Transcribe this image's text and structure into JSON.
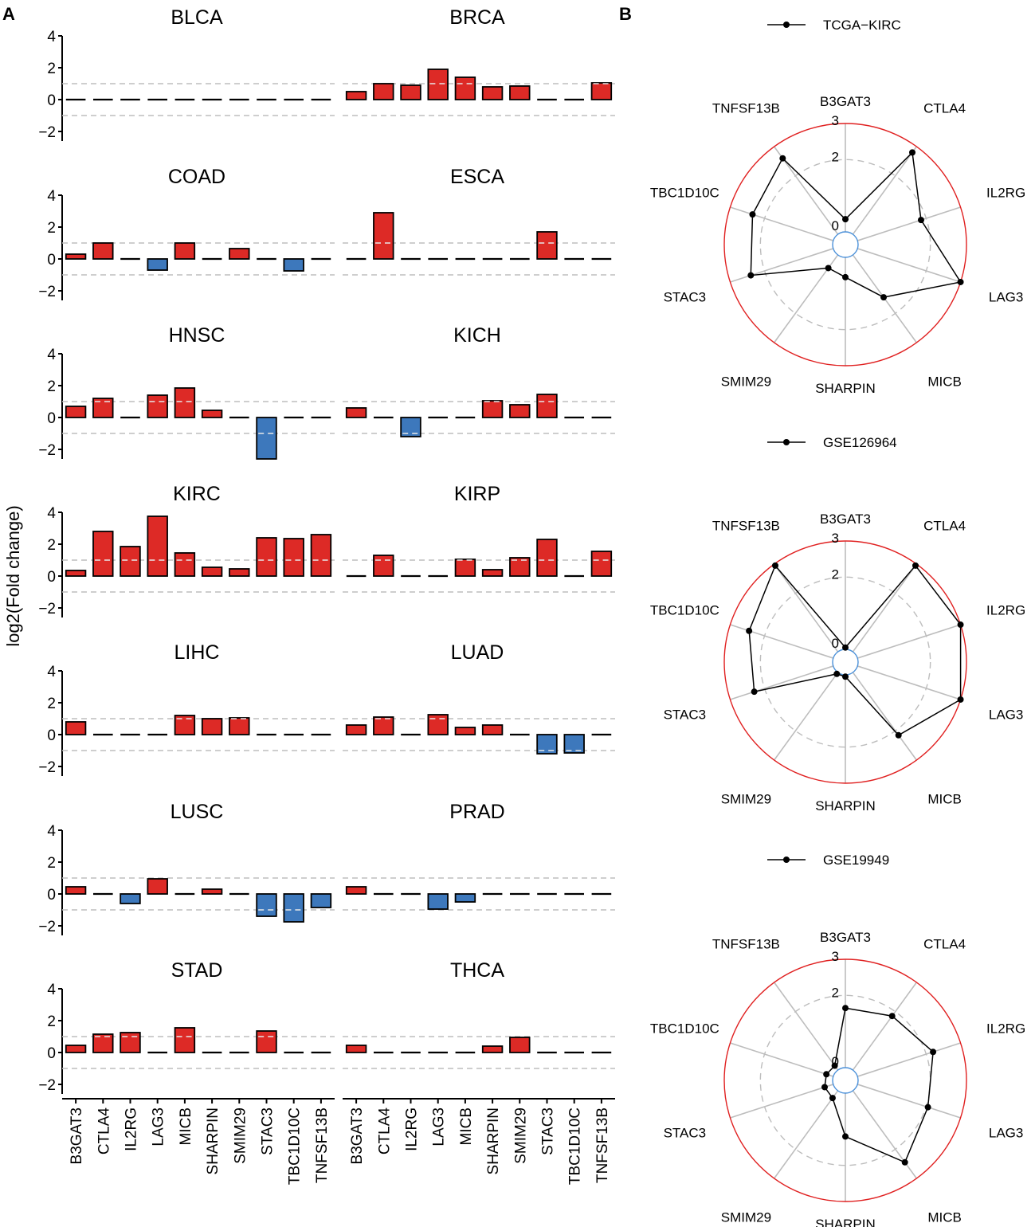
{
  "panels": {
    "a_label": "A",
    "b_label": "B"
  },
  "chart_data": [
    {
      "type": "bar",
      "panel": "A",
      "ylabel": "log2(Fold change)",
      "ylim": [
        -2.6,
        4
      ],
      "yticks": [
        -2,
        0,
        2,
        4
      ],
      "reference_lines": [
        -1,
        1
      ],
      "genes": [
        "B3GAT3",
        "CTLA4",
        "IL2RG",
        "LAG3",
        "MICB",
        "SHARPIN",
        "SMIM29",
        "STAC3",
        "TBC1D10C",
        "TNFSF13B"
      ],
      "colors": {
        "up": "#DD2A26",
        "down": "#3D78BC",
        "zero": "#000000"
      },
      "cancers": [
        {
          "name": "BLCA",
          "values": [
            0,
            0,
            0,
            0,
            0,
            0,
            0,
            0,
            0,
            0
          ]
        },
        {
          "name": "BRCA",
          "values": [
            0.5,
            1.0,
            0.9,
            1.9,
            1.4,
            0.8,
            0.85,
            0,
            0,
            1.05
          ]
        },
        {
          "name": "COAD",
          "values": [
            0.3,
            1.0,
            0,
            -0.7,
            1.0,
            0,
            0.65,
            0,
            -0.75,
            0
          ]
        },
        {
          "name": "ESCA",
          "values": [
            0,
            2.9,
            0,
            0,
            0,
            0,
            0,
            1.7,
            0,
            0
          ]
        },
        {
          "name": "HNSC",
          "values": [
            0.7,
            1.2,
            0,
            1.4,
            1.85,
            0.45,
            0,
            -2.6,
            0,
            0
          ]
        },
        {
          "name": "KICH",
          "values": [
            0.6,
            0,
            -1.2,
            0,
            0,
            1.05,
            0.8,
            1.45,
            0,
            0
          ]
        },
        {
          "name": "KIRC",
          "values": [
            0.35,
            2.8,
            1.85,
            3.75,
            1.45,
            0.55,
            0.45,
            2.4,
            2.35,
            2.6
          ]
        },
        {
          "name": "KIRP",
          "values": [
            0,
            1.3,
            0,
            0,
            1.05,
            0.4,
            1.15,
            2.3,
            0,
            1.55
          ]
        },
        {
          "name": "LIHC",
          "values": [
            0.8,
            0,
            0,
            0,
            1.2,
            1.0,
            1.05,
            0,
            0,
            0
          ]
        },
        {
          "name": "LUAD",
          "values": [
            0.6,
            1.1,
            0,
            1.25,
            0.45,
            0.6,
            0,
            -1.2,
            -1.15,
            0
          ]
        },
        {
          "name": "LUSC",
          "values": [
            0.45,
            0,
            -0.6,
            0.95,
            0,
            0.3,
            0,
            -1.4,
            -1.75,
            -0.85
          ]
        },
        {
          "name": "PRAD",
          "values": [
            0.45,
            0,
            0,
            -0.95,
            -0.5,
            0,
            0,
            0,
            0,
            0
          ]
        },
        {
          "name": "STAD",
          "values": [
            0.45,
            1.15,
            1.25,
            0,
            1.55,
            0,
            0,
            1.35,
            0,
            0
          ]
        },
        {
          "name": "THCA",
          "values": [
            0.45,
            0,
            0,
            0,
            0,
            0.4,
            0.95,
            0,
            0,
            0
          ]
        }
      ]
    },
    {
      "type": "radar",
      "panel": "B",
      "title": "TCGA−KIRC",
      "axes": [
        "B3GAT3",
        "CTLA4",
        "IL2RG",
        "LAG3",
        "MICB",
        "SHARPIN",
        "SMIM29",
        "STAC3",
        "TBC1D10C",
        "TNFSF13B"
      ],
      "values": [
        0.35,
        2.8,
        1.85,
        3.0,
        1.45,
        0.55,
        0.45,
        2.4,
        2.35,
        2.6
      ],
      "rticks": [
        "0",
        "2",
        "3"
      ],
      "rlim": [
        0,
        3
      ]
    },
    {
      "type": "radar",
      "panel": "B",
      "title": "GSE126964",
      "axes": [
        "B3GAT3",
        "CTLA4",
        "IL2RG",
        "LAG3",
        "MICB",
        "SHARPIN",
        "SMIM29",
        "STAC3",
        "TBC1D10C",
        "TNFSF13B"
      ],
      "values": [
        0.05,
        2.95,
        3.0,
        3.0,
        2.15,
        0.05,
        0.05,
        2.3,
        2.45,
        2.95
      ],
      "rticks": [
        "0",
        "2",
        "3"
      ],
      "rlim": [
        0,
        3
      ]
    },
    {
      "type": "radar",
      "panel": "B",
      "title": "GSE19949",
      "axes": [
        "B3GAT3",
        "CTLA4",
        "IL2RG",
        "LAG3",
        "MICB",
        "SHARPIN",
        "SMIM29",
        "STAC3",
        "TBC1D10C",
        "TNFSF13B"
      ],
      "values": [
        1.65,
        1.85,
        2.2,
        2.05,
        2.45,
        1.2,
        0.25,
        0.25,
        0.2,
        0.15
      ],
      "rticks": [
        "0",
        "2",
        "3"
      ],
      "rlim": [
        0,
        3
      ]
    }
  ]
}
